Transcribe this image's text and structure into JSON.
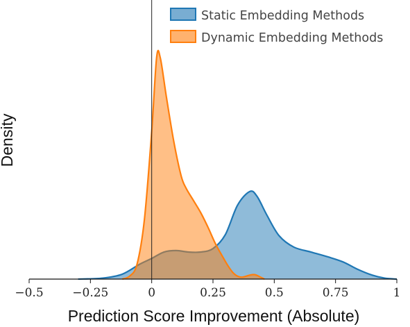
{
  "chart_data": {
    "type": "area",
    "title": "",
    "xlabel": "Prediction Score Improvement (Absolute)",
    "ylabel": "Density",
    "xlim": [
      -0.5,
      1
    ],
    "ylim": [
      0,
      4.6
    ],
    "xticks": [
      -0.5,
      -0.25,
      0,
      0.25,
      0.5,
      0.75,
      1
    ],
    "xtick_labels": [
      "−0.5",
      "−0.25",
      "0",
      "0.25",
      "0.5",
      "0.75",
      "1"
    ],
    "legend_position": "top-right",
    "reference_line_x": 0,
    "series": [
      {
        "name": "Static Embedding Methods",
        "color": "#1f77b4",
        "points": [
          [
            -0.3,
            0.0
          ],
          [
            -0.2,
            0.02
          ],
          [
            -0.12,
            0.1
          ],
          [
            -0.05,
            0.3
          ],
          [
            0.0,
            0.42
          ],
          [
            0.05,
            0.55
          ],
          [
            0.1,
            0.58
          ],
          [
            0.15,
            0.55
          ],
          [
            0.2,
            0.55
          ],
          [
            0.25,
            0.62
          ],
          [
            0.3,
            0.9
          ],
          [
            0.35,
            1.5
          ],
          [
            0.4,
            1.78
          ],
          [
            0.43,
            1.68
          ],
          [
            0.47,
            1.3
          ],
          [
            0.52,
            0.88
          ],
          [
            0.58,
            0.65
          ],
          [
            0.65,
            0.55
          ],
          [
            0.72,
            0.45
          ],
          [
            0.78,
            0.35
          ],
          [
            0.84,
            0.2
          ],
          [
            0.9,
            0.08
          ],
          [
            0.95,
            0.02
          ],
          [
            1.0,
            0.0
          ]
        ]
      },
      {
        "name": "Dynamic Embedding Methods",
        "color": "#ff7f0e",
        "points": [
          [
            -0.12,
            0.0
          ],
          [
            -0.09,
            0.06
          ],
          [
            -0.06,
            0.3
          ],
          [
            -0.03,
            1.2
          ],
          [
            0.0,
            3.0
          ],
          [
            0.02,
            4.5
          ],
          [
            0.035,
            4.5
          ],
          [
            0.06,
            3.7
          ],
          [
            0.09,
            2.8
          ],
          [
            0.12,
            2.1
          ],
          [
            0.14,
            1.85
          ],
          [
            0.17,
            1.6
          ],
          [
            0.2,
            1.35
          ],
          [
            0.23,
            1.05
          ],
          [
            0.26,
            0.72
          ],
          [
            0.29,
            0.45
          ],
          [
            0.31,
            0.28
          ],
          [
            0.33,
            0.14
          ],
          [
            0.35,
            0.06
          ],
          [
            0.37,
            0.04
          ],
          [
            0.4,
            0.08
          ],
          [
            0.42,
            0.09
          ],
          [
            0.44,
            0.05
          ],
          [
            0.46,
            0.0
          ]
        ]
      }
    ]
  }
}
